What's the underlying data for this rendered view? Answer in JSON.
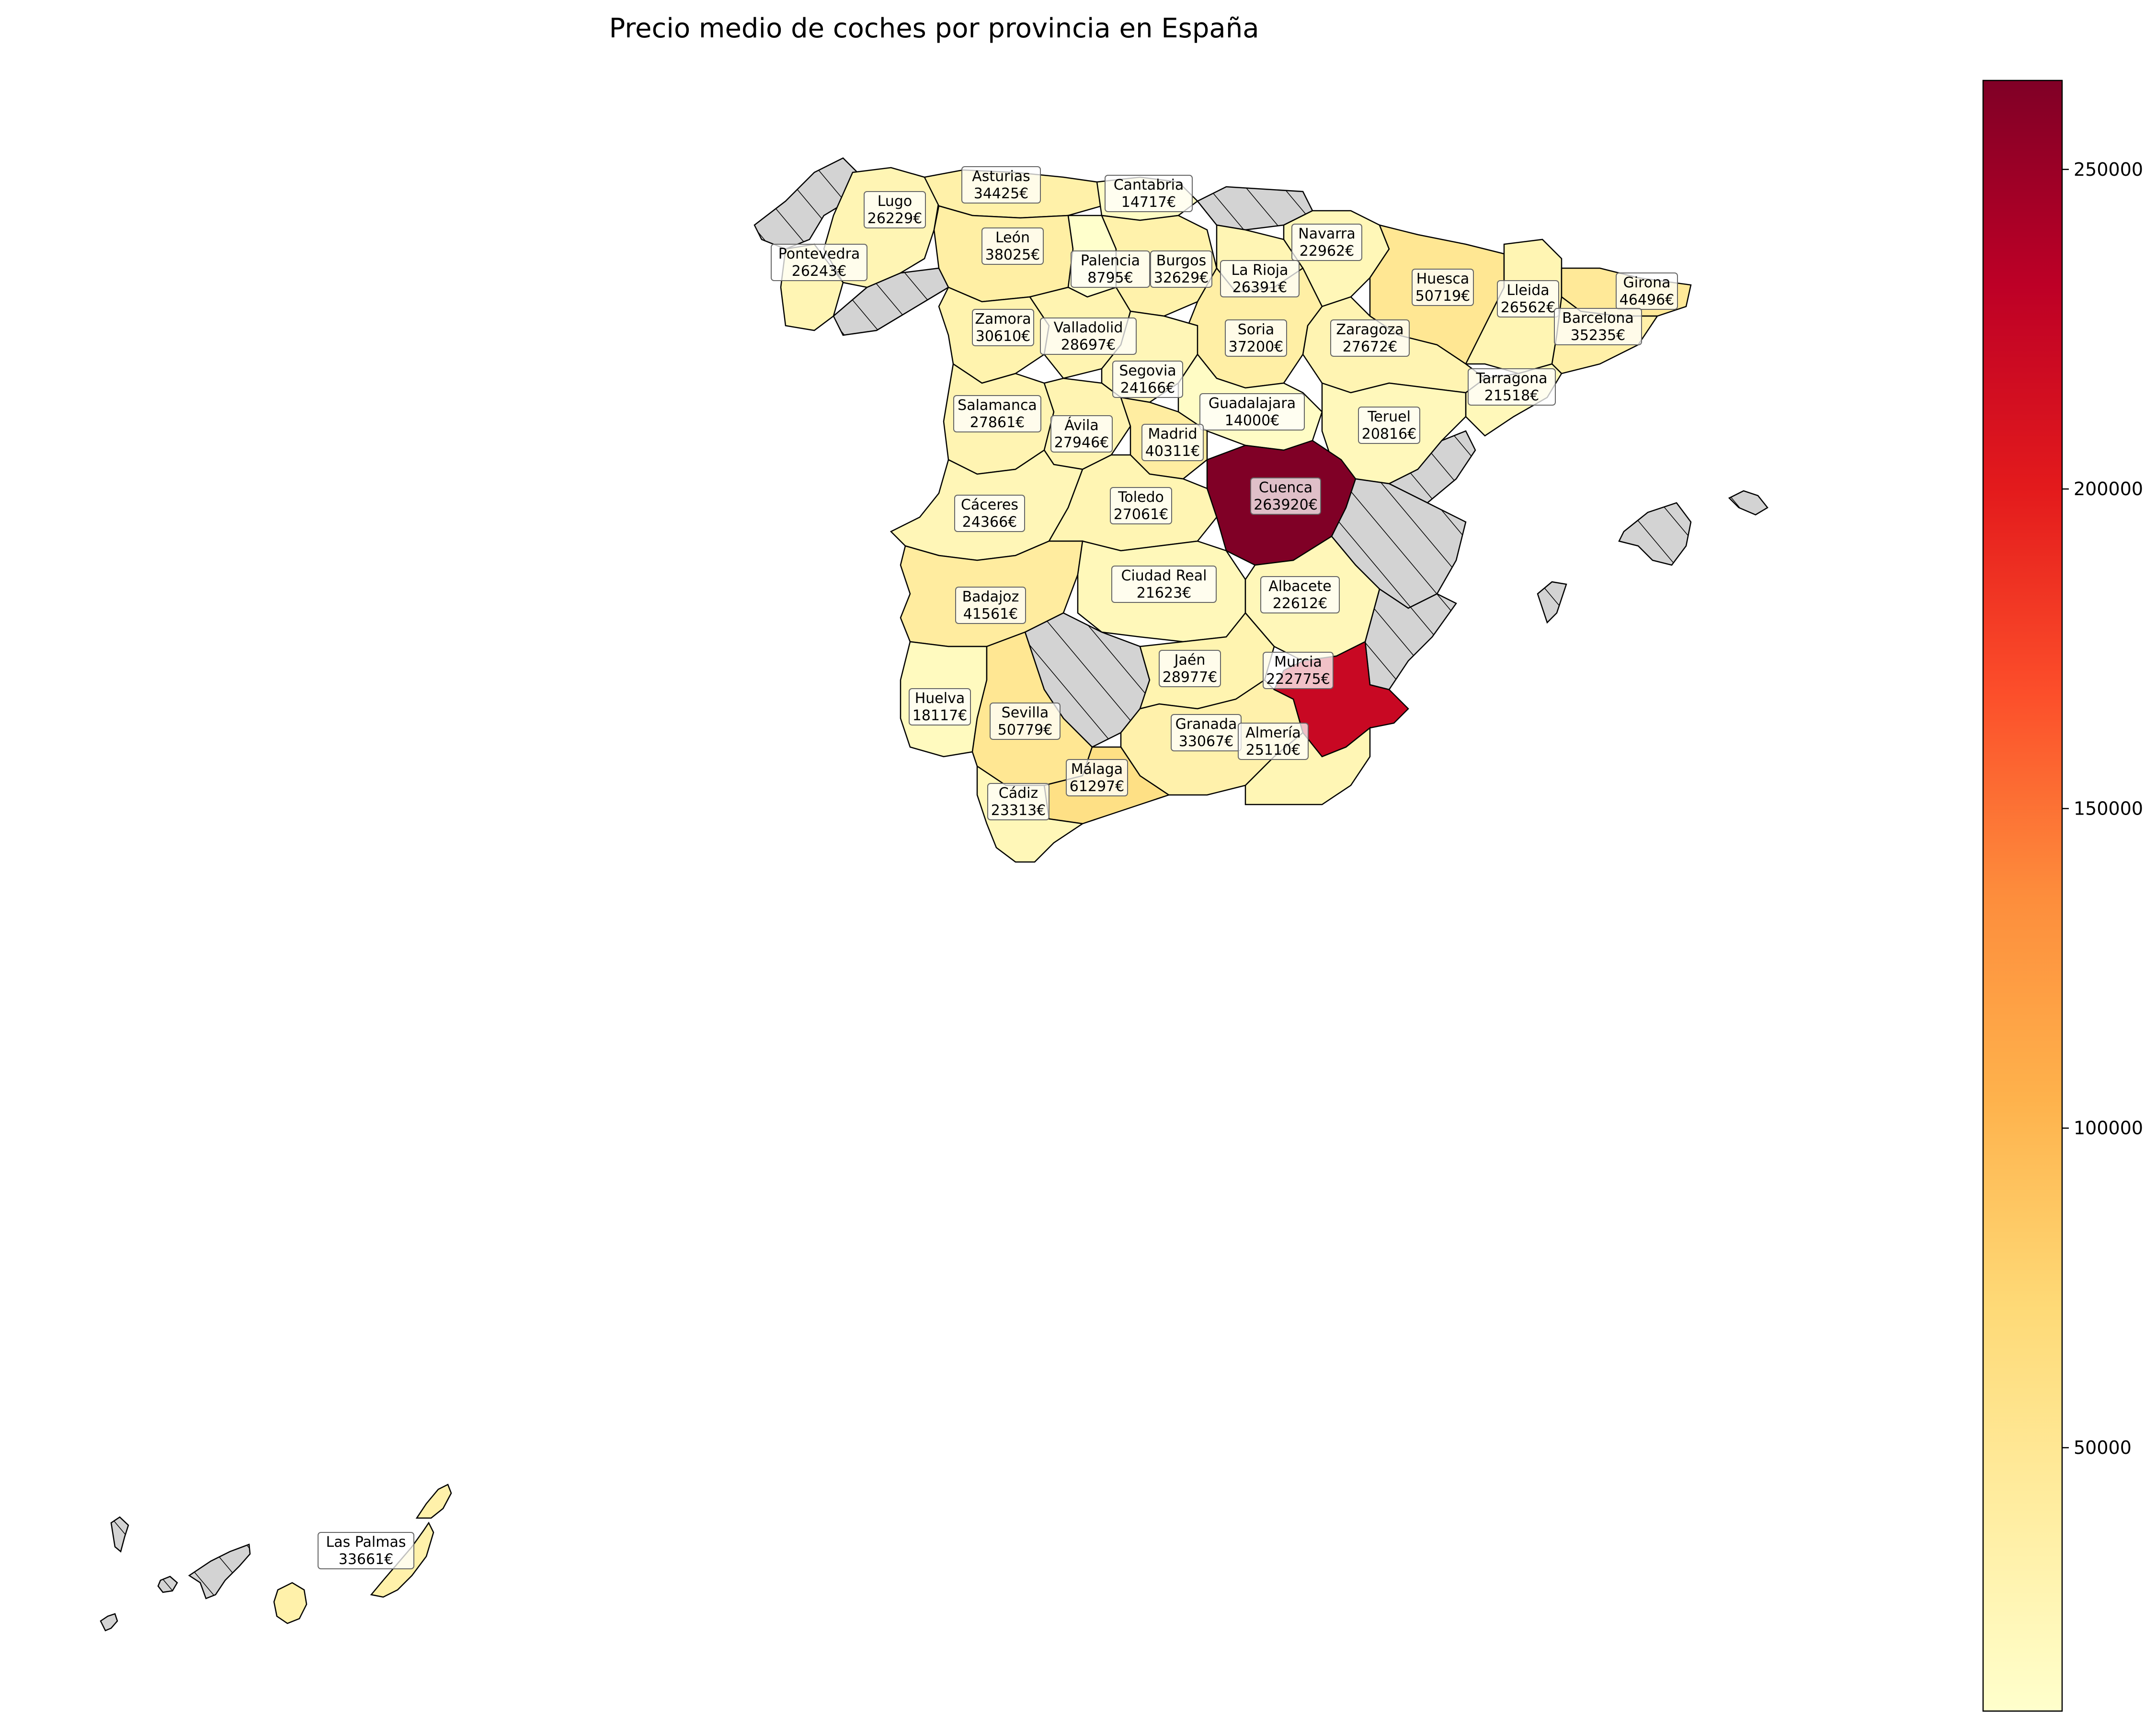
{
  "map": {
    "title": "Precio medio de coches por provincia en España",
    "colormap": "YlOrRd",
    "no_data_color": "#d3d3d3",
    "value_range": [
      8795,
      263920
    ],
    "colorbar_ticks": [
      50000,
      100000,
      150000,
      200000,
      250000
    ]
  },
  "chart_data": {
    "type": "choropleth",
    "title": "Precio medio de coches por provincia en España",
    "unit": "€",
    "provinces": [
      {
        "name": "Asturias",
        "value": 34425,
        "label": "34425€"
      },
      {
        "name": "Cantabria",
        "value": 14717,
        "label": "14717€"
      },
      {
        "name": "Lugo",
        "value": 26229,
        "label": "26229€"
      },
      {
        "name": "León",
        "value": 38025,
        "label": "38025€"
      },
      {
        "name": "Palencia",
        "value": 8795,
        "label": "8795€"
      },
      {
        "name": "Burgos",
        "value": 32629,
        "label": "32629€"
      },
      {
        "name": "Navarra",
        "value": 22962,
        "label": "22962€"
      },
      {
        "name": "La Rioja",
        "value": 26391,
        "label": "26391€"
      },
      {
        "name": "Pontevedra",
        "value": 26243,
        "label": "26243€"
      },
      {
        "name": "Huesca",
        "value": 50719,
        "label": "50719€"
      },
      {
        "name": "Lleida",
        "value": 26562,
        "label": "26562€"
      },
      {
        "name": "Girona",
        "value": 46496,
        "label": "46496€"
      },
      {
        "name": "Barcelona",
        "value": 35235,
        "label": "35235€"
      },
      {
        "name": "Zamora",
        "value": 30610,
        "label": "30610€"
      },
      {
        "name": "Valladolid",
        "value": 28697,
        "label": "28697€"
      },
      {
        "name": "Soria",
        "value": 37200,
        "label": "37200€"
      },
      {
        "name": "Zaragoza",
        "value": 27672,
        "label": "27672€"
      },
      {
        "name": "Segovia",
        "value": 24166,
        "label": "24166€"
      },
      {
        "name": "Tarragona",
        "value": 21518,
        "label": "21518€"
      },
      {
        "name": "Salamanca",
        "value": 27861,
        "label": "27861€"
      },
      {
        "name": "Guadalajara",
        "value": 14000,
        "label": "14000€"
      },
      {
        "name": "Teruel",
        "value": 20816,
        "label": "20816€"
      },
      {
        "name": "Ávila",
        "value": 27946,
        "label": "27946€"
      },
      {
        "name": "Madrid",
        "value": 40311,
        "label": "40311€"
      },
      {
        "name": "Cuenca",
        "value": 263920,
        "label": "263920€"
      },
      {
        "name": "Cáceres",
        "value": 24366,
        "label": "24366€"
      },
      {
        "name": "Toledo",
        "value": 27061,
        "label": "27061€"
      },
      {
        "name": "Ciudad Real",
        "value": 21623,
        "label": "21623€"
      },
      {
        "name": "Albacete",
        "value": 22612,
        "label": "22612€"
      },
      {
        "name": "Badajoz",
        "value": 41561,
        "label": "41561€"
      },
      {
        "name": "Jaén",
        "value": 28977,
        "label": "28977€"
      },
      {
        "name": "Murcia",
        "value": 222775,
        "label": "222775€"
      },
      {
        "name": "Huelva",
        "value": 18117,
        "label": "18117€"
      },
      {
        "name": "Sevilla",
        "value": 50779,
        "label": "50779€"
      },
      {
        "name": "Granada",
        "value": 33067,
        "label": "33067€"
      },
      {
        "name": "Almería",
        "value": 25110,
        "label": "25110€"
      },
      {
        "name": "Málaga",
        "value": 61297,
        "label": "61297€"
      },
      {
        "name": "Cádiz",
        "value": 23313,
        "label": "23313€"
      },
      {
        "name": "Las Palmas",
        "value": 33661,
        "label": "33661€"
      }
    ]
  }
}
